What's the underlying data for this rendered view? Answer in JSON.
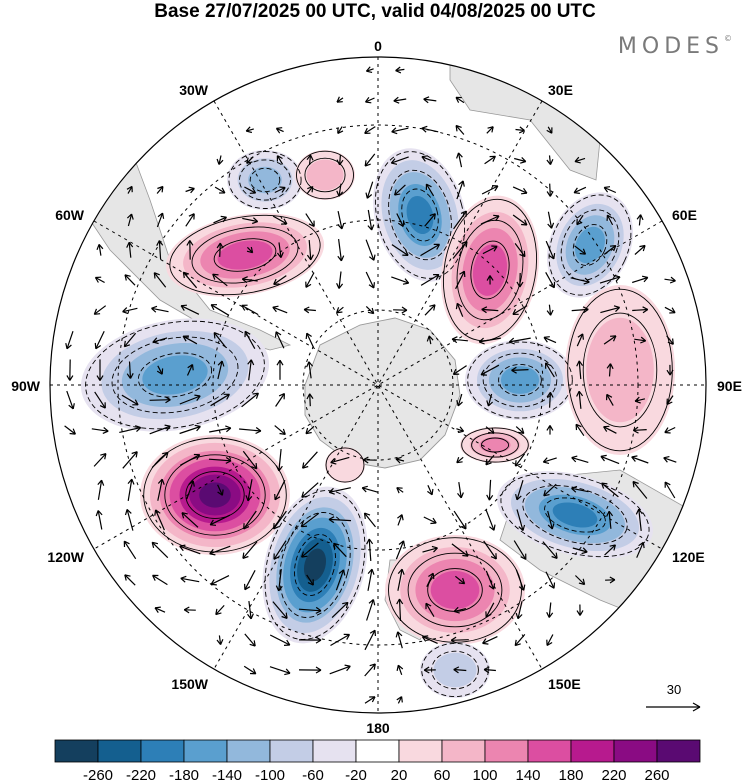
{
  "title": "Base 27/07/2025 00 UTC, valid 04/08/2025 00 UTC",
  "brand": {
    "name": "MODES",
    "mark": "©"
  },
  "projection": "south polar stereographic",
  "longitude_labels": [
    {
      "id": "lon-0",
      "text": "0"
    },
    {
      "id": "lon-30e",
      "text": "30E"
    },
    {
      "id": "lon-60e",
      "text": "60E"
    },
    {
      "id": "lon-90e",
      "text": "90E"
    },
    {
      "id": "lon-120e",
      "text": "120E"
    },
    {
      "id": "lon-150e",
      "text": "150E"
    },
    {
      "id": "lon-180",
      "text": "180"
    },
    {
      "id": "lon-150w",
      "text": "150W"
    },
    {
      "id": "lon-120w",
      "text": "120W"
    },
    {
      "id": "lon-90w",
      "text": "90W"
    },
    {
      "id": "lon-60w",
      "text": "60W"
    },
    {
      "id": "lon-30w",
      "text": "30W"
    }
  ],
  "reference_vector": {
    "label": "30"
  },
  "colorbar": {
    "tick_labels": [
      "-260",
      "-220",
      "-180",
      "-140",
      "-100",
      "-60",
      "-20",
      "20",
      "60",
      "100",
      "140",
      "180",
      "220",
      "260"
    ],
    "colors": [
      "#143f5e",
      "#145f8f",
      "#2d7fb7",
      "#5a9fcf",
      "#92b8dc",
      "#c3cde6",
      "#e6e2f0",
      "#ffffff",
      "#f9d9df",
      "#f4b6c8",
      "#ec85b0",
      "#dc4ea1",
      "#b71a8e",
      "#8a0b83",
      "#5a0a72"
    ]
  },
  "colors": {
    "land": "#e8e8e8",
    "coast": "#9a9a9a",
    "grid": "#000000",
    "vector": "#000000"
  }
}
